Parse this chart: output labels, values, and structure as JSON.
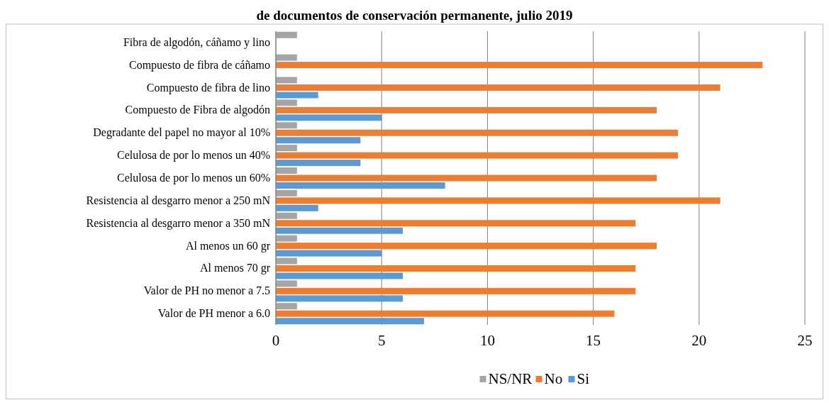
{
  "chart_data": {
    "type": "bar",
    "orientation": "horizontal",
    "title": "de documentos de conservación permanente, julio 2019",
    "categories": [
      "Fibra de algodón, cáñamo y lino",
      "Compuesto de fibra de cáñamo",
      "Compuesto de fibra de lino",
      "Compuesto de Fibra de algodón",
      "Degradante del papel no mayor al 10%",
      "Celulosa de por lo menos un 40%",
      "Celulosa de por lo menos un 60%",
      "Resistencia al desgarro menor a 250 mN",
      "Resistencia al desgarro menor a 350 mN",
      "Al menos un 60 gr",
      "Al menos 70 gr",
      "Valor de PH no menor a 7.5",
      "Valor de PH menor a 6.0"
    ],
    "series": [
      {
        "name": "NS/NR",
        "color": "#a5a5a5",
        "values": [
          1,
          1,
          1,
          1,
          1,
          1,
          1,
          1,
          1,
          1,
          1,
          1,
          1
        ]
      },
      {
        "name": "No",
        "color": "#ed7d31",
        "values": [
          0,
          23,
          21,
          18,
          19,
          19,
          18,
          21,
          17,
          18,
          17,
          17,
          16
        ]
      },
      {
        "name": "Si",
        "color": "#5b9bd5",
        "values": [
          0,
          0,
          2,
          5,
          4,
          4,
          8,
          2,
          6,
          5,
          6,
          6,
          7
        ]
      }
    ],
    "xlim": [
      0,
      25
    ],
    "xticks": [
      0,
      5,
      10,
      15,
      20,
      25
    ],
    "grid": "x",
    "legend": "bottom"
  }
}
